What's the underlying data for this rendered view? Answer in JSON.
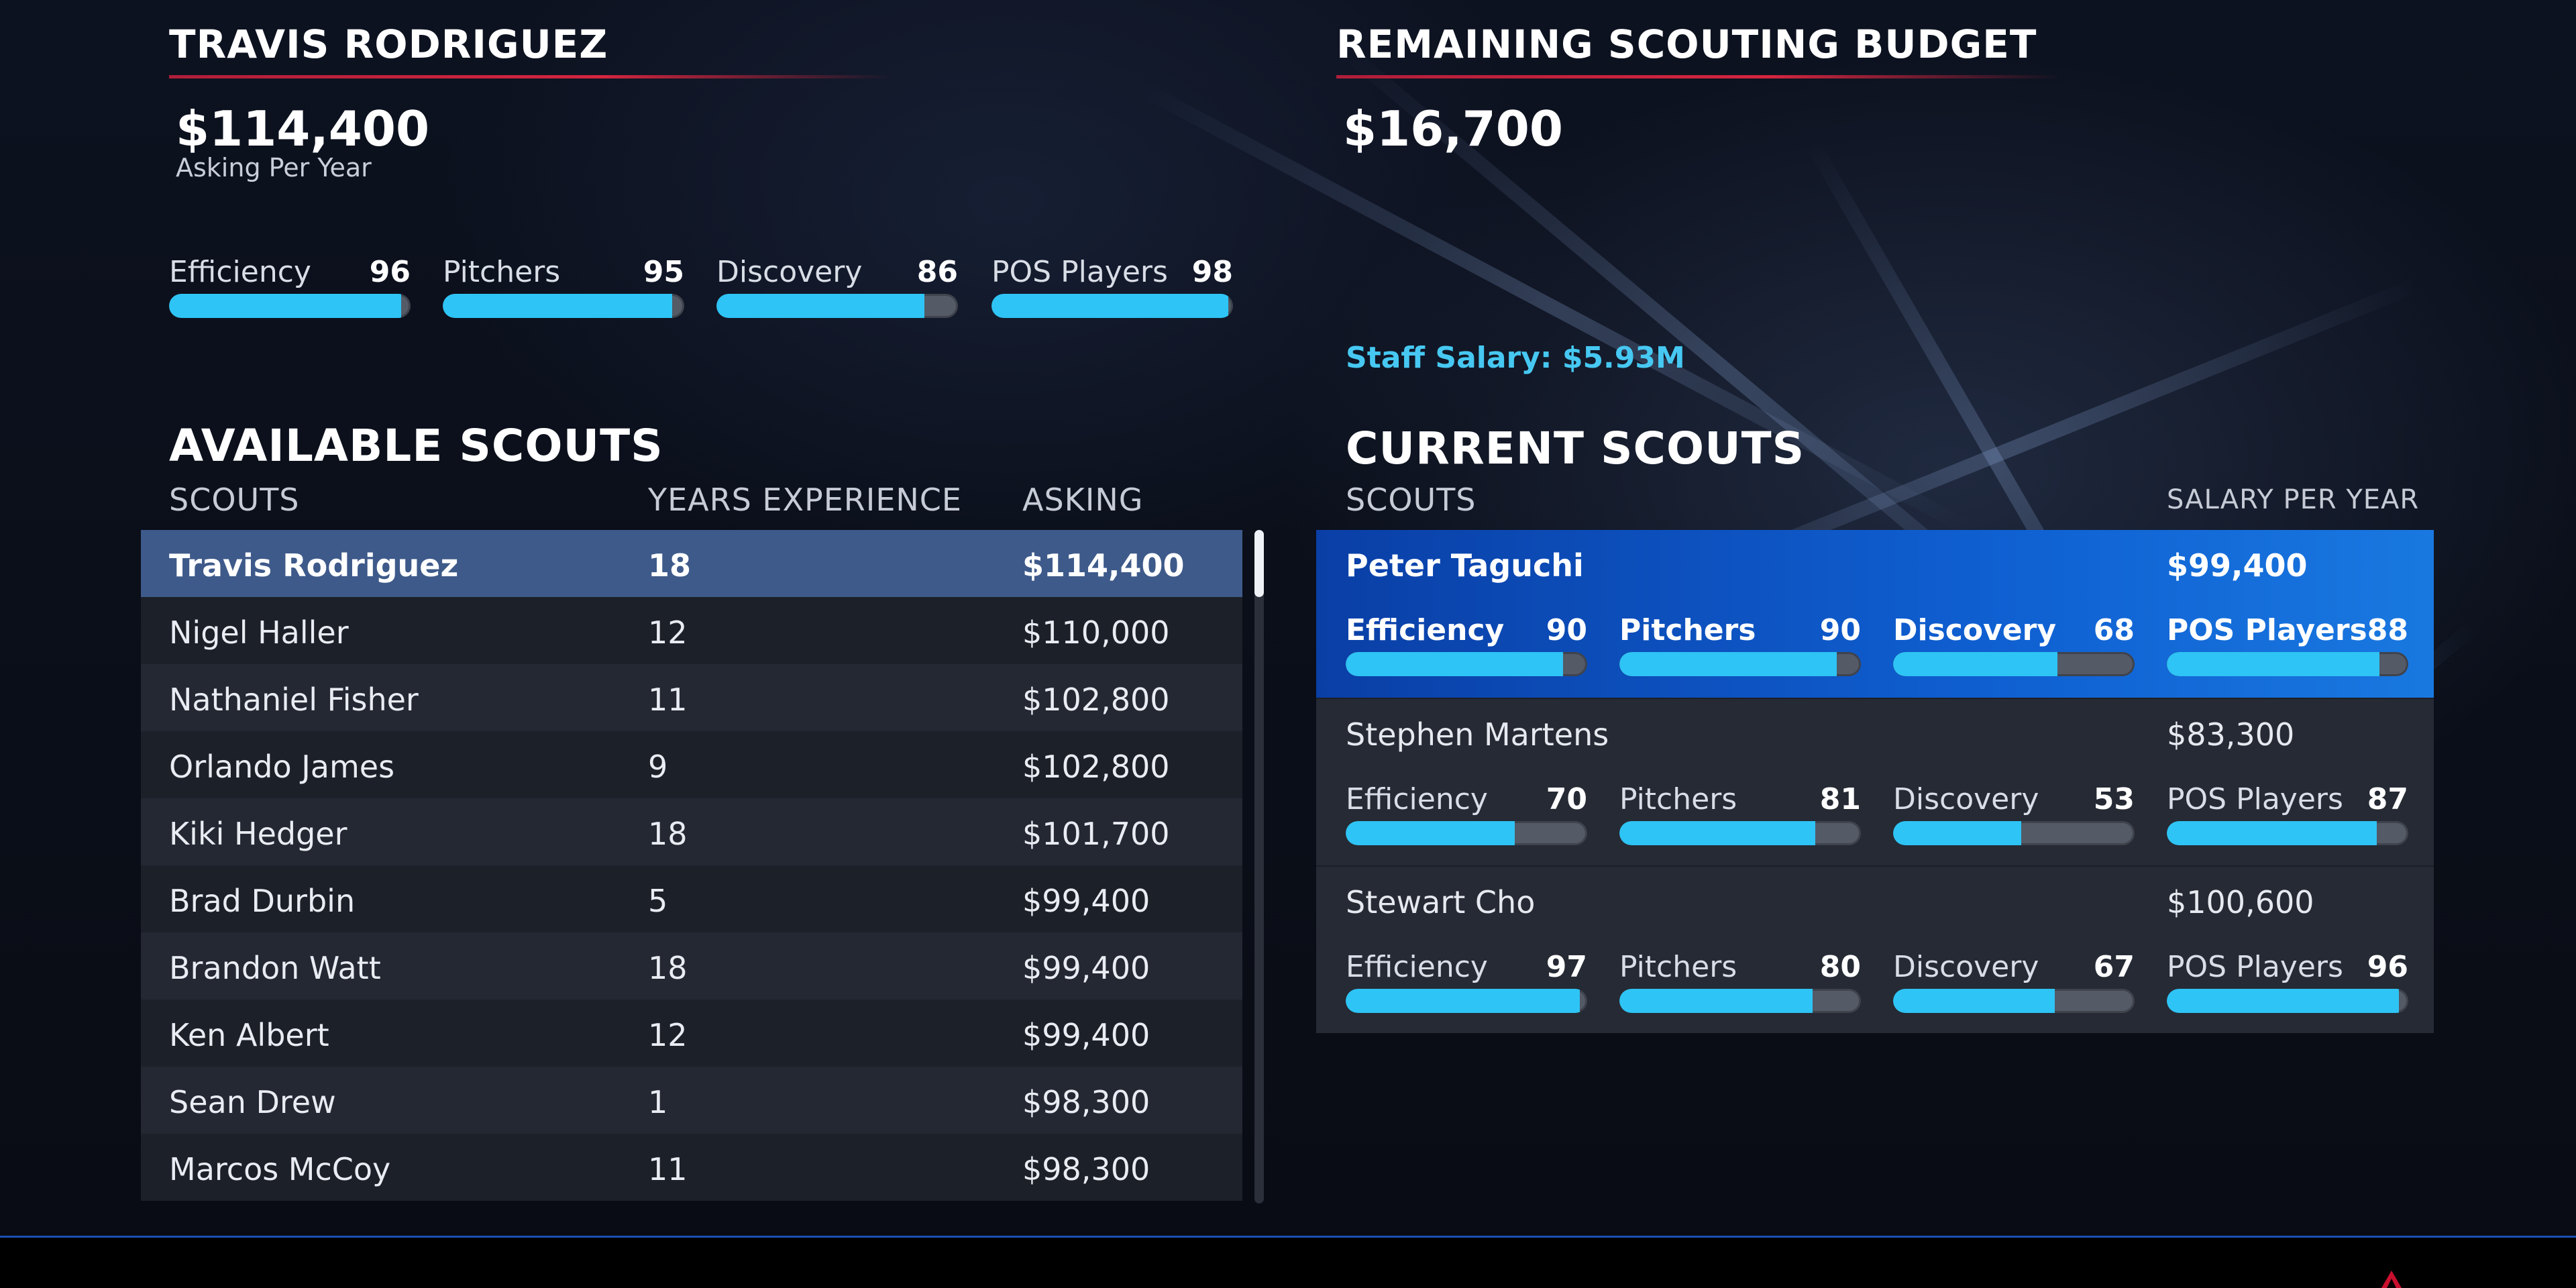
{
  "featured": {
    "name": "TRAVIS RODRIGUEZ",
    "asking": "$114,400",
    "asking_label": "Asking Per Year",
    "ratings": [
      {
        "label": "Efficiency",
        "value": 96
      },
      {
        "label": "Pitchers",
        "value": 95
      },
      {
        "label": "Discovery",
        "value": 86
      },
      {
        "label": "POS Players",
        "value": 98
      }
    ]
  },
  "budget": {
    "title": "REMAINING SCOUTING BUDGET",
    "amount": "$16,700",
    "staff_salary": "Staff Salary: $5.93M"
  },
  "available": {
    "title": "AVAILABLE SCOUTS",
    "columns": {
      "name": "SCOUTS",
      "years": "YEARS EXPERIENCE",
      "asking": "ASKING"
    },
    "selected_index": 0,
    "rows": [
      {
        "name": "Travis Rodriguez",
        "years": "18",
        "asking": "$114,400"
      },
      {
        "name": "Nigel Haller",
        "years": "12",
        "asking": "$110,000"
      },
      {
        "name": "Nathaniel Fisher",
        "years": "11",
        "asking": "$102,800"
      },
      {
        "name": "Orlando James",
        "years": "9",
        "asking": "$102,800"
      },
      {
        "name": "Kiki Hedger",
        "years": "18",
        "asking": "$101,700"
      },
      {
        "name": "Brad Durbin",
        "years": "5",
        "asking": "$99,400"
      },
      {
        "name": "Brandon Watt",
        "years": "18",
        "asking": "$99,400"
      },
      {
        "name": "Ken Albert",
        "years": "12",
        "asking": "$99,400"
      },
      {
        "name": "Sean Drew",
        "years": "1",
        "asking": "$98,300"
      },
      {
        "name": "Marcos McCoy",
        "years": "11",
        "asking": "$98,300"
      }
    ]
  },
  "current": {
    "title": "CURRENT SCOUTS",
    "columns": {
      "name": "SCOUTS",
      "salary": "SALARY PER YEAR"
    },
    "selected_index": 0,
    "rows": [
      {
        "name": "Peter Taguchi",
        "salary": "$99,400",
        "ratings": [
          {
            "label": "Efficiency",
            "value": 90
          },
          {
            "label": "Pitchers",
            "value": 90
          },
          {
            "label": "Discovery",
            "value": 68
          },
          {
            "label": "POS Players",
            "value": 88
          }
        ]
      },
      {
        "name": "Stephen Martens",
        "salary": "$83,300",
        "ratings": [
          {
            "label": "Efficiency",
            "value": 70
          },
          {
            "label": "Pitchers",
            "value": 81
          },
          {
            "label": "Discovery",
            "value": 53
          },
          {
            "label": "POS Players",
            "value": 87
          }
        ]
      },
      {
        "name": "Stewart Cho",
        "salary": "$100,600",
        "ratings": [
          {
            "label": "Efficiency",
            "value": 97
          },
          {
            "label": "Pitchers",
            "value": 80
          },
          {
            "label": "Discovery",
            "value": 67
          },
          {
            "label": "POS Players",
            "value": 96
          }
        ]
      }
    ]
  },
  "colors": {
    "bar_fill": "#2ec4f5",
    "bar_track": "#545a66",
    "accent_red": "#d4253f",
    "selected_blue": "#0f5fd1",
    "staff_salary_text": "#46c8f2"
  }
}
